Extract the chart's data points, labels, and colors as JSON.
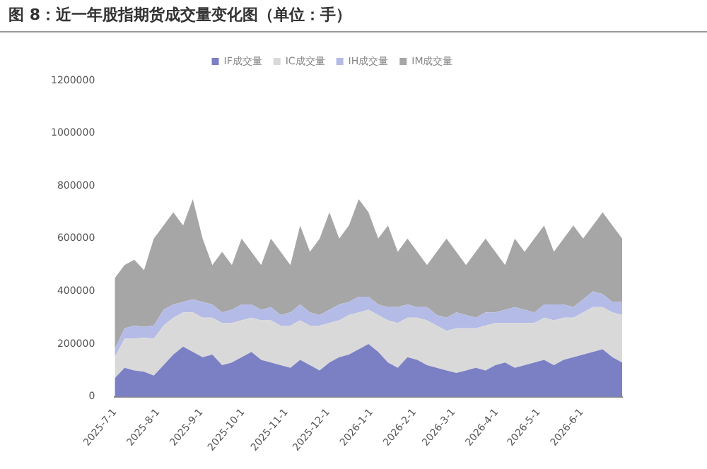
{
  "chart_data": {
    "type": "area",
    "title": "图 8：近一年股指期货成交量变化图（单位：手）",
    "stacked": true,
    "legend": "top",
    "x": [
      "2025-07-01",
      "2025-07-08",
      "2025-07-15",
      "2025-07-22",
      "2025-07-29",
      "2025-08-05",
      "2025-08-12",
      "2025-08-19",
      "2025-08-26",
      "2025-09-02",
      "2025-09-09",
      "2025-09-16",
      "2025-09-23",
      "2025-09-30",
      "2025-10-07",
      "2025-10-14",
      "2025-10-21",
      "2025-10-28",
      "2025-11-04",
      "2025-11-11",
      "2025-11-18",
      "2025-11-25",
      "2025-12-02",
      "2025-12-09",
      "2025-12-16",
      "2025-12-23",
      "2025-12-30",
      "2026-01-06",
      "2026-01-13",
      "2026-01-20",
      "2026-01-27",
      "2026-02-03",
      "2026-02-10",
      "2026-02-17",
      "2026-02-24",
      "2026-03-03",
      "2026-03-10",
      "2026-03-17",
      "2026-03-24",
      "2026-03-31",
      "2026-04-07",
      "2026-04-14",
      "2026-04-21",
      "2026-04-28",
      "2026-05-05",
      "2026-05-12",
      "2026-05-19",
      "2026-05-26",
      "2026-06-02",
      "2026-06-09",
      "2026-06-16",
      "2026-06-23",
      "2026-06-30"
    ],
    "series": [
      {
        "name": "IF成交量",
        "color": "#7b7fc4",
        "values": [
          70000,
          110000,
          100000,
          95000,
          80000,
          120000,
          160000,
          190000,
          170000,
          150000,
          160000,
          120000,
          130000,
          150000,
          170000,
          140000,
          130000,
          120000,
          110000,
          140000,
          120000,
          100000,
          130000,
          150000,
          160000,
          180000,
          200000,
          170000,
          130000,
          110000,
          150000,
          140000,
          120000,
          110000,
          100000,
          90000,
          100000,
          110000,
          100000,
          120000,
          130000,
          110000,
          120000,
          130000,
          140000,
          120000,
          140000,
          150000,
          160000,
          170000,
          180000,
          150000,
          130000
        ]
      },
      {
        "name": "IC成交量",
        "color": "#d9d9d9",
        "values": [
          80000,
          110000,
          120000,
          130000,
          140000,
          150000,
          140000,
          130000,
          150000,
          150000,
          140000,
          160000,
          150000,
          140000,
          130000,
          150000,
          160000,
          150000,
          160000,
          150000,
          150000,
          170000,
          150000,
          140000,
          150000,
          140000,
          130000,
          140000,
          160000,
          170000,
          150000,
          160000,
          170000,
          160000,
          150000,
          170000,
          160000,
          150000,
          170000,
          160000,
          150000,
          170000,
          160000,
          150000,
          160000,
          170000,
          160000,
          150000,
          160000,
          170000,
          160000,
          170000,
          180000
        ]
      },
      {
        "name": "IH成交量",
        "color": "#b4bbe6",
        "values": [
          30000,
          40000,
          50000,
          40000,
          50000,
          60000,
          50000,
          40000,
          50000,
          60000,
          50000,
          40000,
          50000,
          60000,
          50000,
          40000,
          50000,
          40000,
          50000,
          60000,
          50000,
          40000,
          50000,
          60000,
          50000,
          60000,
          50000,
          40000,
          50000,
          60000,
          50000,
          40000,
          50000,
          40000,
          50000,
          60000,
          50000,
          40000,
          50000,
          40000,
          50000,
          60000,
          50000,
          40000,
          50000,
          60000,
          50000,
          40000,
          50000,
          60000,
          50000,
          40000,
          50000
        ]
      },
      {
        "name": "IM成交量",
        "color": "#a6a6a6",
        "values": [
          270000,
          240000,
          250000,
          215000,
          330000,
          320000,
          350000,
          290000,
          380000,
          240000,
          150000,
          230000,
          170000,
          250000,
          200000,
          170000,
          260000,
          240000,
          180000,
          300000,
          230000,
          290000,
          370000,
          250000,
          290000,
          370000,
          320000,
          250000,
          310000,
          210000,
          250000,
          210000,
          160000,
          240000,
          300000,
          230000,
          190000,
          250000,
          280000,
          230000,
          170000,
          260000,
          220000,
          280000,
          300000,
          200000,
          250000,
          310000,
          230000,
          250000,
          310000,
          290000,
          240000
        ]
      }
    ],
    "ylim": [
      0,
      1200000
    ],
    "yticks": [
      0,
      200000,
      400000,
      600000,
      800000,
      1000000,
      1200000
    ],
    "xlim": [
      "2025-07-01",
      "2026-06-30"
    ],
    "xticks": [
      {
        "value": "2025-07-01",
        "label": "2025-7-1"
      },
      {
        "value": "2025-08-01",
        "label": "2025-8-1"
      },
      {
        "value": "2025-09-01",
        "label": "2025-9-1"
      },
      {
        "value": "2025-10-01",
        "label": "2025-10-1"
      },
      {
        "value": "2025-11-01",
        "label": "2025-11-1"
      },
      {
        "value": "2025-12-01",
        "label": "2025-12-1"
      },
      {
        "value": "2026-01-01",
        "label": "2026-1-1"
      },
      {
        "value": "2026-02-01",
        "label": "2026-2-1"
      },
      {
        "value": "2026-03-01",
        "label": "2026-3-1"
      },
      {
        "value": "2026-04-01",
        "label": "2026-4-1"
      },
      {
        "value": "2026-05-01",
        "label": "2026-5-1"
      },
      {
        "value": "2026-06-01",
        "label": "2026-6-1"
      }
    ],
    "grid": false
  }
}
